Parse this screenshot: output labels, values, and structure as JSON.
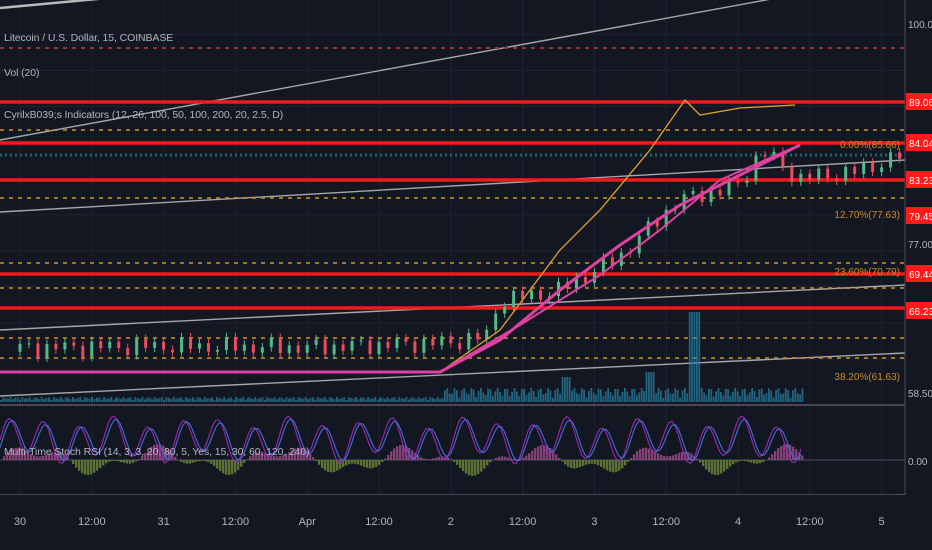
{
  "chart_data": {
    "type": "candlestick",
    "title": "Litecoin / U.S. Dollar, 15, COINBASE",
    "indicators": {
      "volume": "Vol (20)",
      "cm": "CyrilxB039;s Indicators (12, 26, 100, 50, 100, 200, 20, 2.5, D)",
      "stoch": "Multi-Time Stoch RSI (14, 3, 3, 20, 80, 5, Yes, 15, 30, 60, 120, 240)"
    },
    "x_ticks": [
      "30",
      "12:00",
      "31",
      "12:00",
      "Apr",
      "12:00",
      "2",
      "12:00",
      "3",
      "12:00",
      "4",
      "12:00",
      "5"
    ],
    "price_ticks": [
      "100.00",
      "77.00",
      "58.50"
    ],
    "price_labels": [
      {
        "value": "89.06",
        "color": "#ff1a1a"
      },
      {
        "value": "84.04",
        "color": "#ff1a1a"
      },
      {
        "value": "83.23",
        "color": "#ff1a1a"
      },
      {
        "value": "79.45",
        "color": "#ff1a1a"
      },
      {
        "value": "69.44",
        "color": "#ff1a1a"
      },
      {
        "value": "66.23",
        "color": "#ff1a1a"
      }
    ],
    "fib_labels": [
      "0.00%(85.66)",
      "12.70%(77.63)",
      "23.60%(70.79)",
      "38.20%(61.63)"
    ],
    "oscillator_tick": "0.00",
    "series": [
      {
        "name": "LTCUSD",
        "color_up": "#53b987",
        "color_down": "#eb4d5c"
      },
      {
        "color": "#e0a030"
      },
      {
        "color": "#e040a0"
      }
    ],
    "key_points": {
      "start_time": "Mar 29",
      "breakout": {
        "time": "Apr 1 22:30",
        "price": 58.5
      },
      "peak": {
        "time": "Apr 3 12:00",
        "price": 99
      },
      "last": {
        "time": "Apr 4 10:00",
        "price": 84.04
      }
    },
    "ylim": [
      50,
      102
    ]
  },
  "colors": {
    "background": "#131722",
    "grid": "#1e2230",
    "text": "#b2b5be",
    "support": "#ff1a1a",
    "fib": "#c68a2a",
    "channel": "#d6d6d6",
    "volume": "#2a7fa0"
  }
}
